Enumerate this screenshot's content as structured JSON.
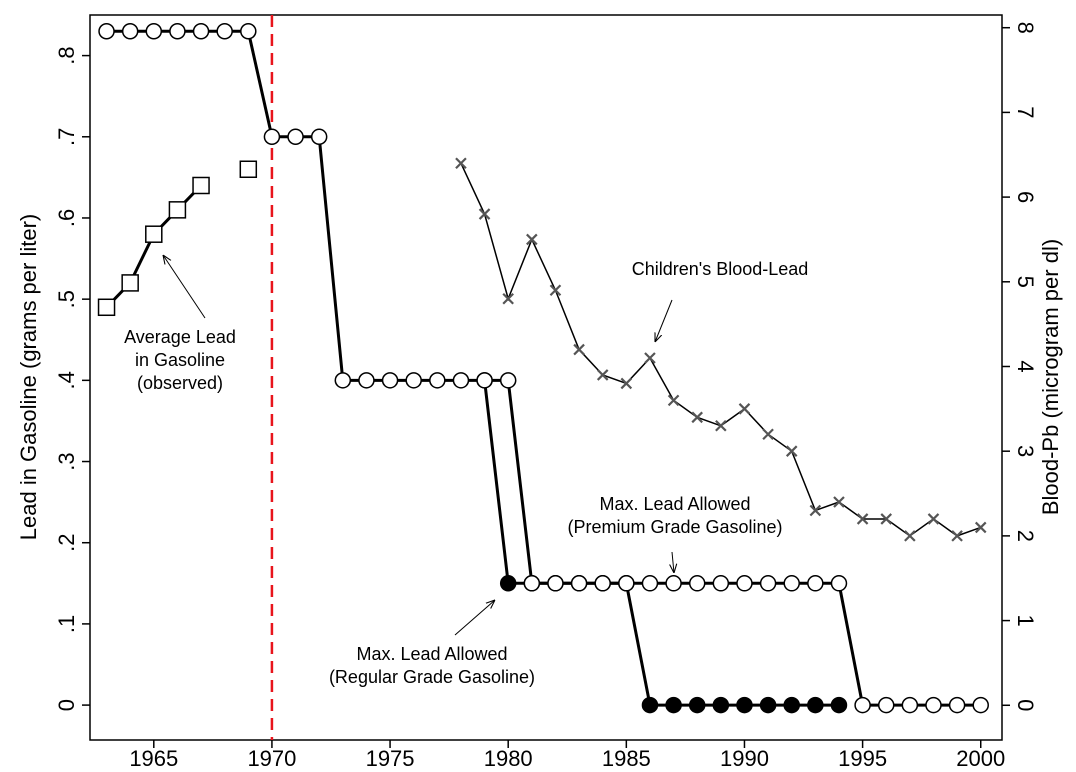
{
  "chart_data": {
    "type": "line",
    "ylabel": "Lead in Gasoline (grams per liter)",
    "y2label": "Blood-Pb (microgram per dl)",
    "xlim": [
      1962.3,
      2000.9
    ],
    "xticks": [
      1965,
      1970,
      1975,
      1980,
      1985,
      1990,
      1995,
      2000
    ],
    "ylim": [
      -0.043,
      0.85
    ],
    "yticks": [
      0,
      {
        "value": 0.1,
        "label": ".1"
      },
      {
        "value": 0.2,
        "label": ".2"
      },
      {
        "value": 0.3,
        "label": ".3"
      },
      {
        "value": 0.4,
        "label": ".4"
      },
      {
        "value": 0.5,
        "label": ".5"
      },
      {
        "value": 0.6,
        "label": ".6"
      },
      {
        "value": 0.7,
        "label": ".7"
      },
      {
        "value": 0.8,
        "label": ".8"
      }
    ],
    "y2lim": [
      -0.41,
      8.15
    ],
    "y2ticks": [
      0,
      1,
      2,
      3,
      4,
      5,
      6,
      7,
      8
    ],
    "reference_line": {
      "x": 1970,
      "color": "#e8141c"
    },
    "series": [
      {
        "name": "Average Lead in Gasoline (observed)",
        "marker": "square",
        "color": "#000000",
        "x": [
          1963,
          1964,
          1965,
          1966,
          1967,
          1968,
          1969
        ],
        "values": [
          0.49,
          0.52,
          0.58,
          0.61,
          0.64,
          null,
          0.66
        ]
      },
      {
        "name": "Max. Lead Allowed (Regular Grade Gasoline)",
        "marker": "circle-filled",
        "color": "#000000",
        "x": [
          1979,
          1980,
          1981,
          1982,
          1983,
          1984,
          1985,
          1986,
          1987,
          1988,
          1989,
          1990,
          1991,
          1992,
          1993,
          1994
        ],
        "values": [
          0.4,
          0.15,
          0.15,
          0.15,
          0.15,
          0.15,
          0.15,
          0,
          0,
          0,
          0,
          0,
          0,
          0,
          0,
          0
        ]
      },
      {
        "name": "Max. Lead Allowed (Premium Grade Gasoline)",
        "marker": "circle-open",
        "color": "#000000",
        "x": [
          1963,
          1964,
          1965,
          1966,
          1967,
          1968,
          1969,
          1970,
          1971,
          1972,
          1973,
          1974,
          1975,
          1976,
          1977,
          1978,
          1979,
          1980,
          1981,
          1982,
          1983,
          1984,
          1985,
          1986,
          1987,
          1988,
          1989,
          1990,
          1991,
          1992,
          1993,
          1994,
          1995,
          1996,
          1997,
          1998,
          1999,
          2000
        ],
        "values": [
          0.83,
          0.83,
          0.83,
          0.83,
          0.83,
          0.83,
          0.83,
          0.7,
          0.7,
          0.7,
          0.4,
          0.4,
          0.4,
          0.4,
          0.4,
          0.4,
          0.4,
          0.4,
          0.15,
          0.15,
          0.15,
          0.15,
          0.15,
          0.15,
          0.15,
          0.15,
          0.15,
          0.15,
          0.15,
          0.15,
          0.15,
          0.15,
          0,
          0,
          0,
          0,
          0,
          0
        ]
      },
      {
        "name": "Children's Blood-Lead",
        "marker": "x",
        "color": "#555555",
        "axis": "y2",
        "x": [
          1978,
          1979,
          1980,
          1981,
          1982,
          1983,
          1984,
          1985,
          1986,
          1987,
          1988,
          1989,
          1990,
          1991,
          1992,
          1993,
          1994,
          1995,
          1996,
          1997,
          1998,
          1999,
          2000
        ],
        "values": [
          6.4,
          5.8,
          4.8,
          5.5,
          4.9,
          4.2,
          3.9,
          3.8,
          4.1,
          3.6,
          3.4,
          3.3,
          3.5,
          3.2,
          3.0,
          2.3,
          2.4,
          2.2,
          2.2,
          2.0,
          2.2,
          2.0,
          2.1
        ]
      }
    ],
    "annotations": [
      {
        "text": [
          "Average Lead",
          "in Gasoline",
          "(observed)"
        ]
      },
      {
        "text": [
          "Children's Blood-Lead"
        ]
      },
      {
        "text": [
          "Max. Lead Allowed",
          "(Premium Grade Gasoline)"
        ]
      },
      {
        "text": [
          "Max. Lead Allowed",
          "(Regular Grade Gasoline)"
        ]
      }
    ]
  }
}
